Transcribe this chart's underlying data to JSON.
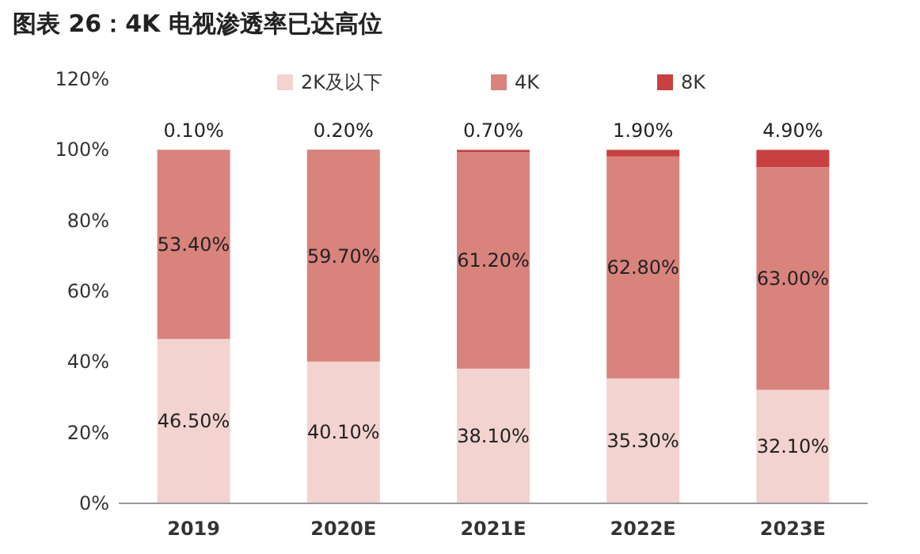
{
  "chart_data": {
    "type": "bar",
    "stacked": true,
    "title": "图表 26：4K 电视渗透率已达高位",
    "categories": [
      "2019",
      "2020E",
      "2021E",
      "2022E",
      "2023E"
    ],
    "series": [
      {
        "name": "2K及以下",
        "color": "#f2d3cf",
        "values": [
          46.5,
          40.1,
          38.1,
          35.3,
          32.1
        ],
        "value_labels": [
          "46.50%",
          "40.10%",
          "38.10%",
          "35.30%",
          "32.10%"
        ]
      },
      {
        "name": "4K",
        "color": "#d9837d",
        "values": [
          53.4,
          59.7,
          61.2,
          62.8,
          63.0
        ],
        "value_labels": [
          "53.40%",
          "59.70%",
          "61.20%",
          "62.80%",
          "63.00%"
        ]
      },
      {
        "name": "8K",
        "color": "#c8403f",
        "values": [
          0.1,
          0.2,
          0.7,
          1.9,
          4.9
        ],
        "value_labels": [
          "0.10%",
          "0.20%",
          "0.70%",
          "1.90%",
          "4.90%"
        ]
      }
    ],
    "ylim": [
      0,
      120
    ],
    "yticks": [
      {
        "value": 0,
        "label": "0%"
      },
      {
        "value": 20,
        "label": "20%"
      },
      {
        "value": 40,
        "label": "40%"
      },
      {
        "value": 60,
        "label": "60%"
      },
      {
        "value": 80,
        "label": "80%"
      },
      {
        "value": 100,
        "label": "100%"
      },
      {
        "value": 120,
        "label": "120%"
      }
    ],
    "legend": "top",
    "grid": false
  }
}
